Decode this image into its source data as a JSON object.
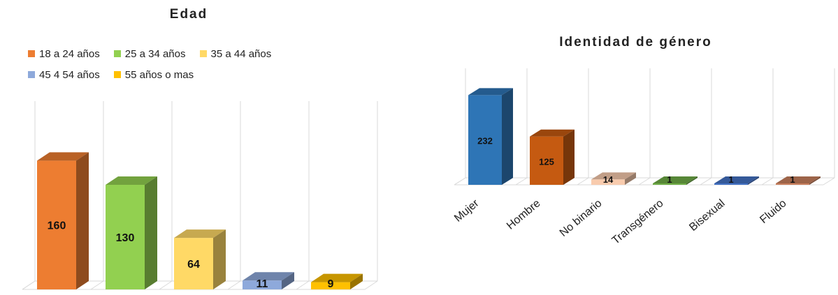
{
  "chart_data": [
    {
      "type": "bar",
      "title": "Edad",
      "categories": [
        "18 a 24 años",
        "25 a 34 años",
        "35 a 44 años",
        "45 4 54 años",
        "55 años o mas"
      ],
      "values": [
        160,
        130,
        64,
        11,
        9
      ],
      "colors": [
        "#ED7D31",
        "#92D050",
        "#FFD966",
        "#8EA9DB",
        "#FFC000"
      ],
      "legend_position": "top",
      "grid": true,
      "three_d": true,
      "ylim": [
        0,
        175
      ]
    },
    {
      "type": "bar",
      "title": "Identidad de género",
      "categories": [
        "Mujer",
        "Hombre",
        "No binario",
        "Transgénero",
        "Bisexual",
        "Fluido"
      ],
      "values": [
        232,
        125,
        14,
        1,
        1,
        1
      ],
      "colors": [
        "#2E75B6",
        "#C55A11",
        "#F8CBAD",
        "#70AD47",
        "#4472C4",
        "#C9805E"
      ],
      "legend_position": "none",
      "grid": true,
      "three_d": true,
      "ylim": [
        0,
        240
      ]
    }
  ]
}
